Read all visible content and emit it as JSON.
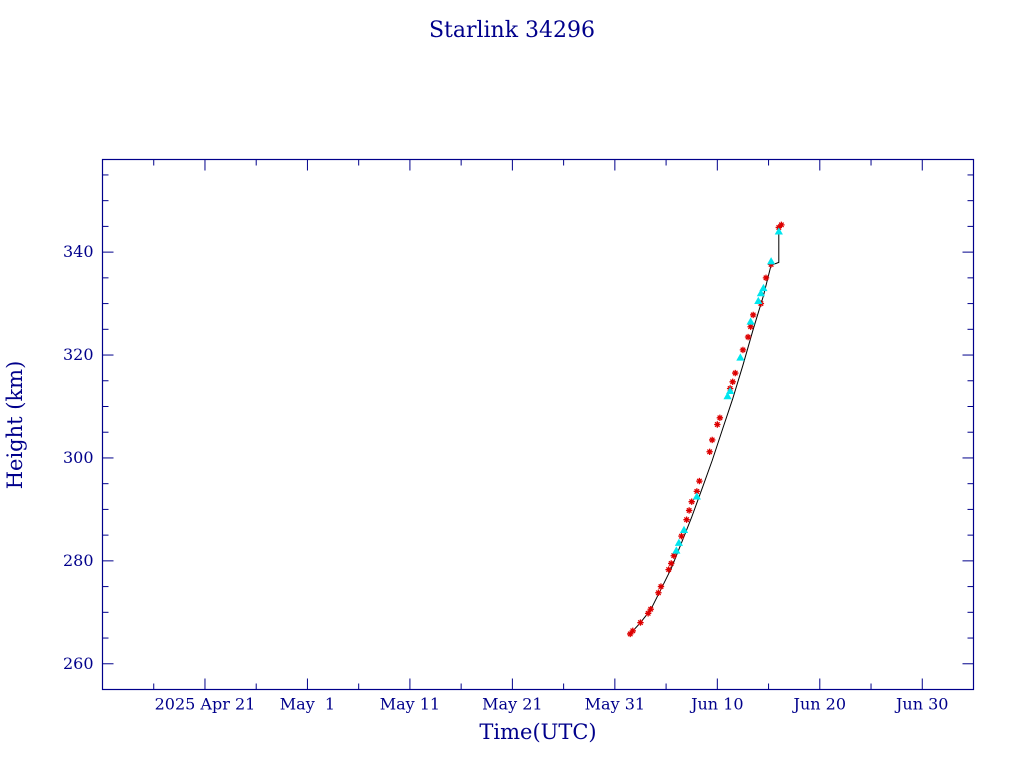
{
  "chart_data": {
    "type": "scatter",
    "title": "Starlink 34296",
    "xlabel": "Time(UTC)",
    "ylabel": "Height (km)",
    "x_unit": "date",
    "xlim": [
      "2025-04-11",
      "2025-07-05"
    ],
    "ylim": [
      255,
      358
    ],
    "x_major_ticks": [
      {
        "date": "2025-04-21",
        "label": "2025 Apr 21"
      },
      {
        "date": "2025-05-01",
        "label": "May  1"
      },
      {
        "date": "2025-05-11",
        "label": "May 11"
      },
      {
        "date": "2025-05-21",
        "label": "May 21"
      },
      {
        "date": "2025-05-31",
        "label": "May 31"
      },
      {
        "date": "2025-06-10",
        "label": "Jun 10"
      },
      {
        "date": "2025-06-20",
        "label": "Jun 20"
      },
      {
        "date": "2025-06-30",
        "label": "Jun 30"
      }
    ],
    "x_minor_ticks": [
      "2025-04-16",
      "2025-04-26",
      "2025-05-06",
      "2025-05-16",
      "2025-05-26",
      "2025-06-05",
      "2025-06-15",
      "2025-06-25"
    ],
    "y_major_ticks": [
      260,
      280,
      300,
      320,
      340
    ],
    "y_minor_step": 5,
    "grid": false,
    "legend": "none",
    "colors": {
      "axis": "#00008b",
      "line": "#000000",
      "series_a": "#dd0000",
      "series_b": "#00e5ee"
    },
    "line": {
      "points": [
        [
          "2025-06-01T12:00",
          265.8
        ],
        [
          "2025-06-02T12:00",
          268.0
        ],
        [
          "2025-06-03T12:00",
          270.5
        ],
        [
          "2025-06-04T12:00",
          274.5
        ],
        [
          "2025-06-05T12:00",
          278.5
        ],
        [
          "2025-06-06T12:00",
          283.5
        ],
        [
          "2025-06-07T12:00",
          288.5
        ],
        [
          "2025-06-08T12:00",
          294.0
        ],
        [
          "2025-06-09T12:00",
          299.5
        ],
        [
          "2025-06-10T12:00",
          305.5
        ],
        [
          "2025-06-11T12:00",
          311.5
        ],
        [
          "2025-06-12T12:00",
          318.0
        ],
        [
          "2025-06-13T12:00",
          325.0
        ],
        [
          "2025-06-14T12:00",
          331.5
        ],
        [
          "2025-06-15T06:00",
          337.5
        ],
        [
          "2025-06-15T18:00",
          337.8
        ],
        [
          "2025-06-16T00:00",
          338.0
        ],
        [
          "2025-06-16T00:00",
          344.5
        ],
        [
          "2025-06-16T06:00",
          345.3
        ]
      ]
    },
    "series": [
      {
        "marker": "asterisk",
        "color": "#dd0000",
        "points": [
          [
            "2025-06-01T12:00",
            265.8
          ],
          [
            "2025-06-01T18:00",
            266.4
          ],
          [
            "2025-06-02T12:00",
            268.0
          ],
          [
            "2025-06-03T06:00",
            269.8
          ],
          [
            "2025-06-03T12:00",
            270.6
          ],
          [
            "2025-06-04T06:00",
            273.8
          ],
          [
            "2025-06-04T12:00",
            275.0
          ],
          [
            "2025-06-05T06:00",
            278.3
          ],
          [
            "2025-06-05T12:00",
            279.5
          ],
          [
            "2025-06-05T18:00",
            281.0
          ],
          [
            "2025-06-06T12:00",
            284.8
          ],
          [
            "2025-06-07T00:00",
            288.0
          ],
          [
            "2025-06-07T06:00",
            289.8
          ],
          [
            "2025-06-07T12:00",
            291.5
          ],
          [
            "2025-06-08T00:00",
            293.5
          ],
          [
            "2025-06-08T06:00",
            295.5
          ],
          [
            "2025-06-09T06:00",
            301.2
          ],
          [
            "2025-06-09T12:00",
            303.5
          ],
          [
            "2025-06-10T00:00",
            306.5
          ],
          [
            "2025-06-10T06:00",
            307.8
          ],
          [
            "2025-06-11T06:00",
            313.5
          ],
          [
            "2025-06-11T12:00",
            314.8
          ],
          [
            "2025-06-11T18:00",
            316.5
          ],
          [
            "2025-06-12T12:00",
            321.0
          ],
          [
            "2025-06-13T00:00",
            323.5
          ],
          [
            "2025-06-13T06:00",
            325.5
          ],
          [
            "2025-06-13T12:00",
            327.8
          ],
          [
            "2025-06-14T06:00",
            330.0
          ],
          [
            "2025-06-14T18:00",
            335.0
          ],
          [
            "2025-06-15T06:00",
            337.6
          ],
          [
            "2025-06-16T00:00",
            344.8
          ],
          [
            "2025-06-16T06:00",
            345.3
          ]
        ]
      },
      {
        "marker": "triangle",
        "color": "#00e5ee",
        "points": [
          [
            "2025-06-06T00:00",
            282.0
          ],
          [
            "2025-06-06T06:00",
            283.5
          ],
          [
            "2025-06-06T18:00",
            286.0
          ],
          [
            "2025-06-08T00:00",
            292.5
          ],
          [
            "2025-06-11T00:00",
            312.0
          ],
          [
            "2025-06-11T06:00",
            313.0
          ],
          [
            "2025-06-12T06:00",
            319.5
          ],
          [
            "2025-06-13T06:00",
            326.5
          ],
          [
            "2025-06-14T00:00",
            330.5
          ],
          [
            "2025-06-14T06:00",
            332.0
          ],
          [
            "2025-06-14T12:00",
            333.0
          ],
          [
            "2025-06-15T06:00",
            338.2
          ],
          [
            "2025-06-16T00:00",
            344.0
          ]
        ]
      }
    ]
  }
}
